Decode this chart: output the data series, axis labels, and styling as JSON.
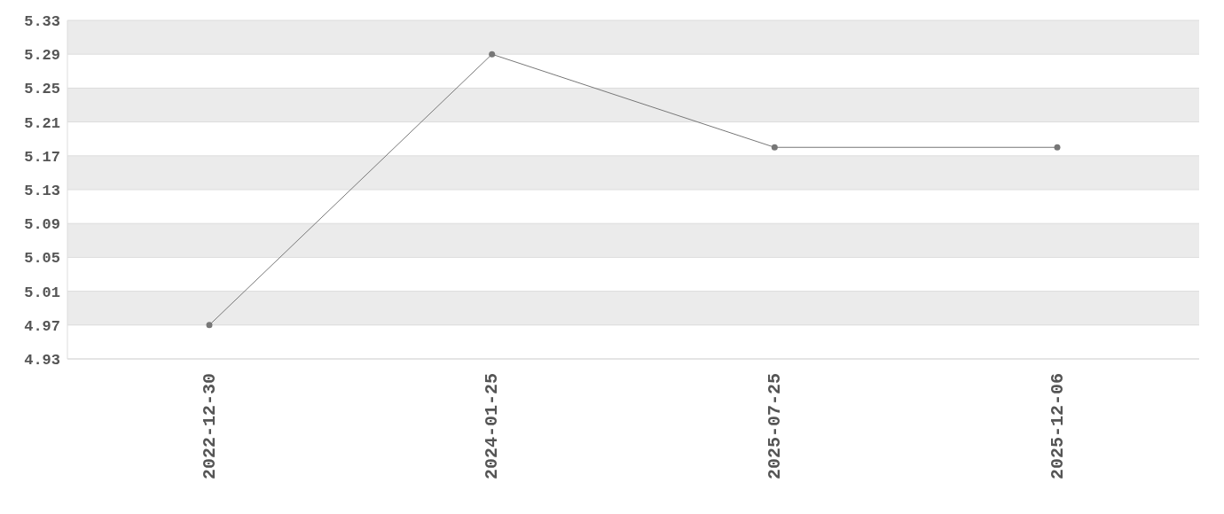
{
  "chart_data": {
    "type": "line",
    "categories": [
      "2022-12-30",
      "2024-01-25",
      "2025-07-25",
      "2025-12-06"
    ],
    "series": [
      {
        "color": "#777777",
        "values": [
          4.97,
          5.29,
          5.18,
          5.18
        ]
      }
    ],
    "ylim": [
      4.93,
      5.33
    ],
    "yticks": [
      4.93,
      4.97,
      5.01,
      5.05,
      5.09,
      5.13,
      5.17,
      5.21,
      5.25,
      5.29,
      5.33
    ],
    "grid": "y",
    "legend": false,
    "marker": "circle",
    "line_style": "solid"
  }
}
